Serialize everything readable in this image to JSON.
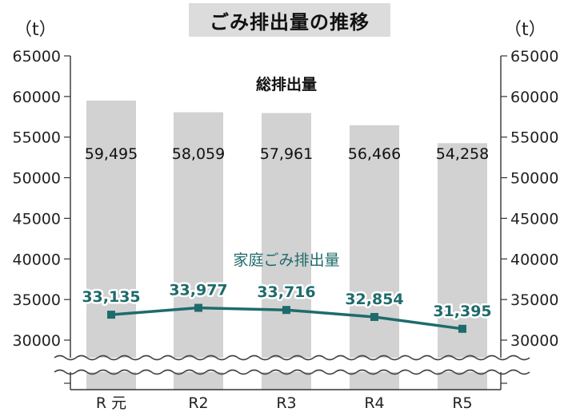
{
  "chart_data": {
    "type": "bar",
    "title": "ごみ排出量の推移",
    "unit_left": "（t）",
    "unit_right": "（t）",
    "categories": [
      "R 元",
      "R2",
      "R3",
      "R4",
      "R5"
    ],
    "y_ticks": [
      "65000",
      "60000",
      "55000",
      "50000",
      "45000",
      "40000",
      "35000",
      "30000"
    ],
    "ylim": [
      30000,
      65000
    ],
    "axis_break": true,
    "grid": false,
    "series": [
      {
        "name": "総排出量",
        "type": "bar",
        "values": [
          59495,
          58059,
          57961,
          56466,
          54258
        ],
        "labels": [
          "59,495",
          "58,059",
          "57,961",
          "56,466",
          "54,258"
        ],
        "color": "#d2d2d2"
      },
      {
        "name": "家庭ごみ排出量",
        "type": "line",
        "values": [
          33135,
          33977,
          33716,
          32854,
          31395
        ],
        "labels": [
          "33,135",
          "33,977",
          "33,716",
          "32,854",
          "31,395"
        ],
        "color": "#1f6b6b"
      }
    ]
  }
}
